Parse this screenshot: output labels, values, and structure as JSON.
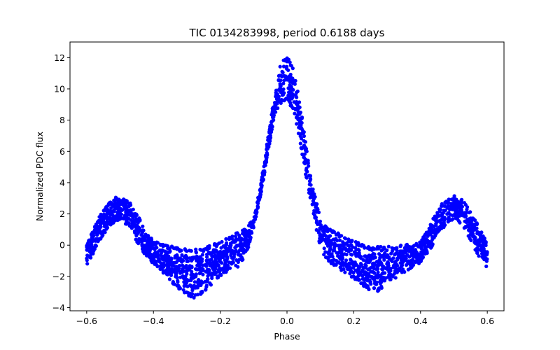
{
  "chart_data": {
    "type": "scatter",
    "title": "TIC 0134283998, period 0.6188 days",
    "xlabel": "Phase",
    "ylabel": "Normalized PDC flux",
    "xlim": [
      -0.65,
      0.65
    ],
    "ylim": [
      -4.2,
      13.0
    ],
    "xticks": [
      -0.6,
      -0.4,
      -0.2,
      0.0,
      0.2,
      0.4,
      0.6
    ],
    "xtick_labels": [
      "−0.6",
      "−0.4",
      "−0.2",
      "0.0",
      "0.2",
      "0.4",
      "0.6"
    ],
    "yticks": [
      -4,
      -2,
      0,
      2,
      4,
      6,
      8,
      10,
      12
    ],
    "ytick_labels": [
      "−4",
      "−2",
      "0",
      "2",
      "4",
      "6",
      "8",
      "10",
      "12"
    ],
    "grid": false,
    "marker_color": "#0000ff",
    "series": [
      {
        "x": [
          -0.6,
          -0.58,
          -0.56,
          -0.54,
          -0.52,
          -0.5,
          -0.48,
          -0.46,
          -0.44,
          -0.42,
          -0.4,
          -0.38,
          -0.36,
          -0.34,
          -0.32,
          -0.3,
          -0.28,
          -0.26,
          -0.24,
          -0.22,
          -0.2,
          -0.18,
          -0.16,
          -0.14,
          -0.12,
          -0.1,
          -0.08,
          -0.06,
          -0.04,
          -0.02,
          0.0,
          0.02,
          0.04,
          0.06,
          0.08,
          0.1,
          0.12,
          0.14,
          0.16,
          0.18,
          0.2,
          0.22,
          0.24,
          0.26,
          0.28,
          0.3,
          0.32,
          0.34,
          0.36,
          0.38,
          0.4,
          0.42,
          0.44,
          0.46,
          0.48,
          0.5,
          0.52,
          0.54,
          0.56,
          0.58,
          0.6
        ],
        "y_upper": [
          0.1,
          1.0,
          1.9,
          2.6,
          3.0,
          3.2,
          3.0,
          2.5,
          1.7,
          0.8,
          0.3,
          0.1,
          0.0,
          -0.1,
          -0.2,
          -0.2,
          -0.3,
          -0.2,
          -0.1,
          0.1,
          0.2,
          0.5,
          0.7,
          0.9,
          1.1,
          1.8,
          3.8,
          6.5,
          9.5,
          11.5,
          12.2,
          11.3,
          9.0,
          6.0,
          3.5,
          1.7,
          1.1,
          0.9,
          0.7,
          0.5,
          0.3,
          0.1,
          0.0,
          -0.1,
          -0.1,
          -0.1,
          0.0,
          0.0,
          0.1,
          0.2,
          0.3,
          0.9,
          1.8,
          2.6,
          3.0,
          3.2,
          3.0,
          2.5,
          1.8,
          1.0,
          0.2
        ],
        "y_lower": [
          -1.3,
          -0.6,
          0.2,
          0.9,
          1.4,
          1.6,
          1.3,
          0.6,
          -0.2,
          -0.8,
          -1.2,
          -1.6,
          -2.0,
          -2.5,
          -2.9,
          -3.2,
          -3.4,
          -3.2,
          -2.8,
          -2.4,
          -2.0,
          -1.7,
          -1.5,
          -1.4,
          -0.5,
          1.0,
          3.0,
          5.5,
          8.0,
          9.0,
          9.3,
          8.5,
          6.5,
          4.0,
          1.8,
          -0.2,
          -1.0,
          -1.3,
          -1.6,
          -1.9,
          -2.2,
          -2.5,
          -2.8,
          -3.0,
          -2.9,
          -2.6,
          -2.2,
          -1.9,
          -1.6,
          -1.4,
          -1.1,
          -0.6,
          0.1,
          0.9,
          1.4,
          1.7,
          1.4,
          0.7,
          -0.2,
          -0.9,
          -1.5
        ]
      }
    ]
  }
}
